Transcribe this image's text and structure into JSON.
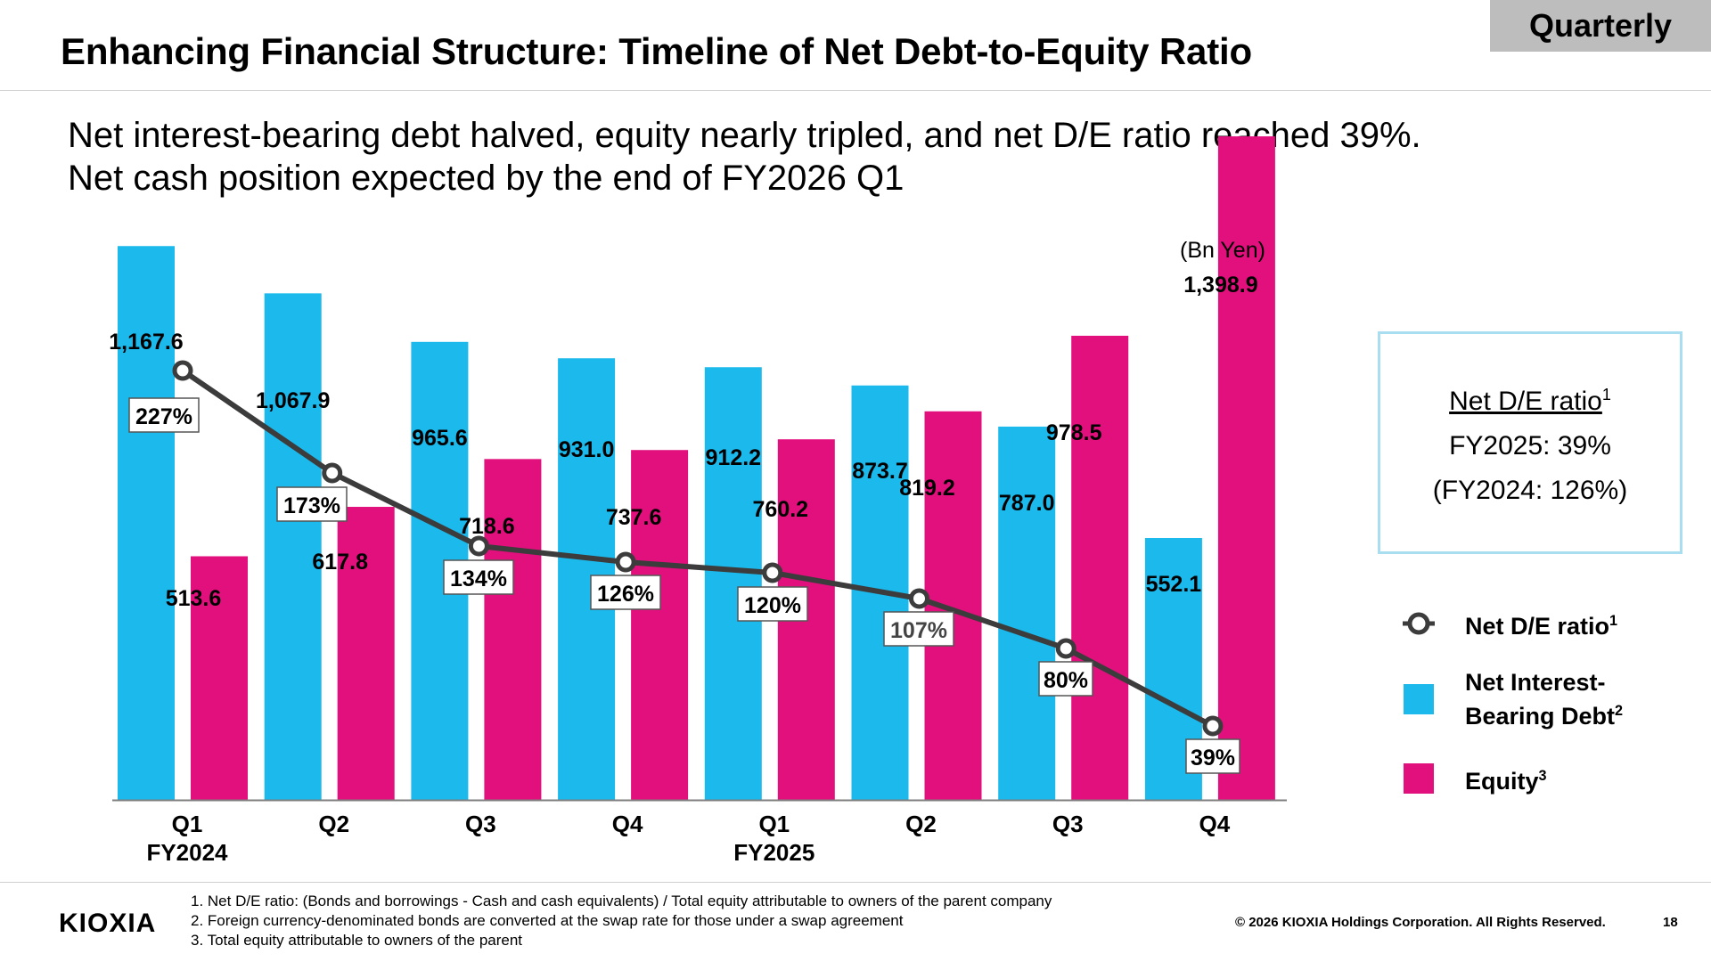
{
  "header": {
    "title": "Enhancing Financial Structure: Timeline of Net Debt-to-Equity Ratio",
    "badge": "Quarterly"
  },
  "subtitle": {
    "line1": "Net interest-bearing debt halved, equity nearly tripled, and net D/E ratio reached 39%.",
    "line2": "Net cash position expected by the end of FY2026 Q1"
  },
  "chart_data": {
    "type": "bar",
    "unit_label": "(Bn Yen)",
    "categories": [
      "Q1",
      "Q2",
      "Q3",
      "Q4",
      "Q1",
      "Q2",
      "Q3",
      "Q4"
    ],
    "category_sublabels": [
      "FY2024",
      "",
      "",
      "",
      "FY2025",
      "",
      "",
      ""
    ],
    "ylim": [
      0,
      1500
    ],
    "series": [
      {
        "name": "Net Interest-Bearing Debt",
        "color": "#1bb9ec",
        "values": [
          1167.6,
          1067.9,
          965.6,
          931.0,
          912.2,
          873.7,
          787.0,
          552.1
        ],
        "labels": [
          "1,167.6",
          "1,067.9",
          "965.6",
          "931.0",
          "912.2",
          "873.7",
          "787.0",
          "552.1"
        ]
      },
      {
        "name": "Equity",
        "color": "#e2107c",
        "values": [
          513.6,
          617.8,
          718.6,
          737.6,
          760.2,
          819.2,
          978.5,
          1398.9
        ],
        "labels": [
          "513.6",
          "617.8",
          "718.6",
          "737.6",
          "760.2",
          "819.2",
          "978.5",
          "1,398.9"
        ]
      }
    ],
    "line": {
      "name": "Net D/E ratio",
      "color": "#3c3c3c",
      "values": [
        227,
        173,
        134,
        126,
        120,
        107,
        80,
        39
      ],
      "labels": [
        "227%",
        "173%",
        "134%",
        "126%",
        "120%",
        "107%",
        "80%",
        "39%"
      ]
    }
  },
  "note_box": {
    "heading": "Net D/E ratio",
    "heading_sup": "1",
    "line1": "FY2025: 39%",
    "line2": "(FY2024: 126%)"
  },
  "legend": [
    {
      "label": "Net D/E ratio",
      "sup": "1",
      "icon": "circle-marker-line-icon"
    },
    {
      "label": "Net Interest-Bearing Debt",
      "sup": "2",
      "icon": "blue-swatch-icon",
      "color": "#1bb9ec"
    },
    {
      "label": "Equity",
      "sup": "3",
      "icon": "pink-swatch-icon",
      "color": "#e2107c"
    }
  ],
  "footer": {
    "logo": "KIOXIA",
    "notes": [
      "1. Net D/E ratio: (Bonds and borrowings - Cash and cash equivalents) / Total equity attributable to owners of the parent company",
      "2. Foreign currency-denominated bonds are converted at the swap rate for those under a swap agreement",
      "3. Total equity attributable to owners of the parent"
    ],
    "copyright": "© 2026 KIOXIA Holdings Corporation. All Rights Reserved.",
    "page": "18"
  }
}
